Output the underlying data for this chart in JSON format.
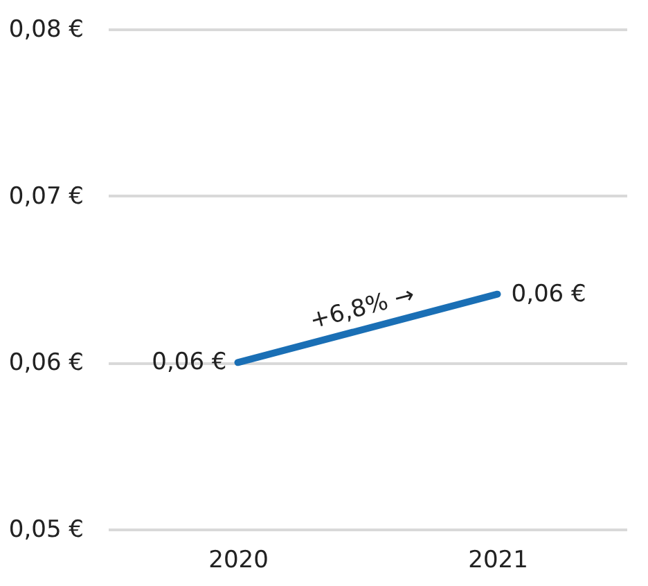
{
  "chart_data": {
    "type": "line",
    "categories": [
      "2020",
      "2021"
    ],
    "series": [
      {
        "color": "#1a6fb5",
        "values": [
          0.06,
          0.0641
        ],
        "value_labels": [
          "0,06 €",
          "0,06 €"
        ]
      }
    ],
    "ylim": [
      0.05,
      0.08
    ],
    "yticks": [
      {
        "value": 0.05,
        "label": "0,05 €"
      },
      {
        "value": 0.06,
        "label": "0,06 €"
      },
      {
        "value": 0.07,
        "label": "0,07 €"
      },
      {
        "value": 0.08,
        "label": "0,08 €"
      }
    ],
    "grid": "y",
    "marker": "none",
    "line_style": "solid",
    "annotations": [
      "+6,8% →"
    ]
  }
}
